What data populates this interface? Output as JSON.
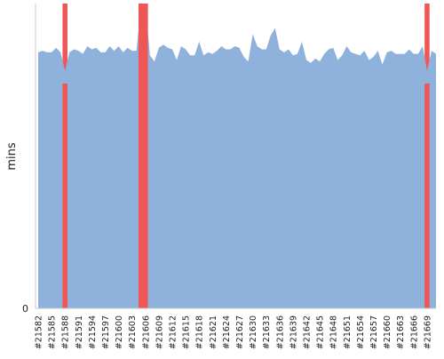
{
  "chart_data": {
    "type": "area",
    "title": "",
    "xlabel": "",
    "ylabel": "mins",
    "ylim": [
      0,
      100
    ],
    "y_ticks": [
      "0"
    ],
    "grid": false,
    "legend": "none",
    "colors": {
      "area": "#8fb2dc",
      "highlight": "#ef5656",
      "axis": "#c8c8c8",
      "text": "#222222"
    },
    "x_start": 21582,
    "x_end": 21670,
    "x_tick_labels": [
      "#21582",
      "#21585",
      "#21588",
      "#21591",
      "#21594",
      "#21597",
      "#21600",
      "#21603",
      "#21606",
      "#21609",
      "#21612",
      "#21615",
      "#21618",
      "#21621",
      "#21624",
      "#21627",
      "#21630",
      "#21633",
      "#21636",
      "#21639",
      "#21642",
      "#21645",
      "#21648",
      "#21651",
      "#21654",
      "#21657",
      "#21660",
      "#21663",
      "#21666",
      "#21669"
    ],
    "values": [
      84,
      84.5,
      84,
      84,
      85.5,
      84,
      78,
      84,
      85,
      84.5,
      83.5,
      86,
      85,
      85.5,
      84,
      84,
      86,
      84.5,
      86,
      84,
      85.5,
      84.5,
      84.5,
      100,
      100,
      83,
      81,
      85.5,
      86.5,
      85.5,
      85,
      81.5,
      86,
      85,
      83,
      83,
      87.5,
      83,
      84,
      83.5,
      84.5,
      86,
      85,
      85,
      86,
      85.5,
      82.5,
      81,
      90,
      86,
      85,
      85,
      89.5,
      92,
      85,
      84,
      85,
      83,
      83.5,
      87.5,
      81.5,
      80.5,
      82,
      81,
      83.5,
      85,
      85.5,
      81.5,
      83,
      86,
      84,
      83.5,
      83,
      84.5,
      81.5,
      82.5,
      84.5,
      80,
      84,
      84.5,
      83.5,
      83.5,
      83.5,
      85,
      83.5,
      83.5,
      86,
      78,
      84.5,
      83.5
    ],
    "highlight_x": [
      21588,
      21605,
      21606,
      21669
    ]
  }
}
